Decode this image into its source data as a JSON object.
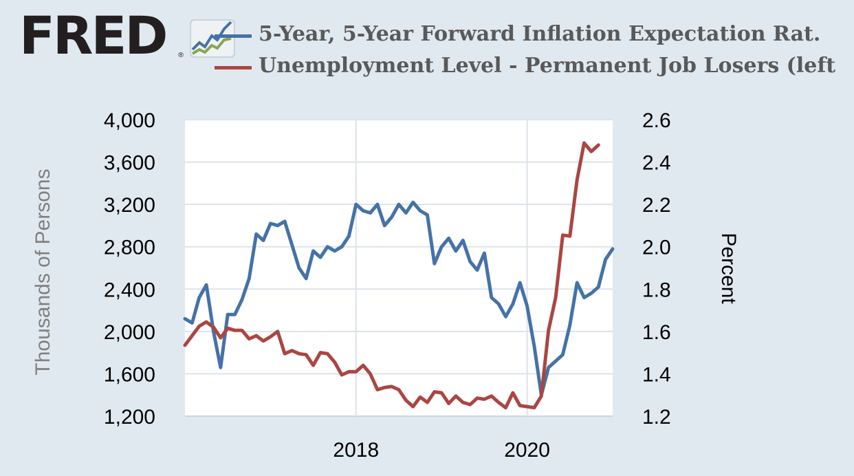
{
  "brand": {
    "logo_text": "FRED",
    "registered_mark": "®"
  },
  "colors": {
    "background": "#e1e9f0",
    "plot_background": "#ffffff",
    "gridline": "#dde3ea",
    "inflation_series": "#4572a7",
    "unemployment_series": "#aa4643",
    "left_axis_label": "#808080"
  },
  "legend": [
    {
      "label": "5-Year, 5-Year Forward Inflation Expectation Rat.",
      "color": "#4572a7"
    },
    {
      "label": "Unemployment Level - Permanent Job Losers (left",
      "color": "#aa4643"
    }
  ],
  "chart_data": {
    "type": "line",
    "x_ticks": [
      "2018",
      "2020"
    ],
    "x_range": [
      "2016-01",
      "2021-01"
    ],
    "left_axis": {
      "label": "Thousands of Persons",
      "range": [
        1200,
        4000
      ],
      "ticks": [
        "1,200",
        "1,600",
        "2,000",
        "2,400",
        "2,800",
        "3,200",
        "3,600",
        "4,000"
      ],
      "tick_values": [
        1200,
        1600,
        2000,
        2400,
        2800,
        3200,
        3600,
        4000
      ]
    },
    "right_axis": {
      "label": "Percent",
      "range": [
        1.2,
        2.6
      ],
      "ticks": [
        "1.2",
        "1.4",
        "1.6",
        "1.8",
        "2.0",
        "2.2",
        "2.4",
        "2.6"
      ],
      "tick_values": [
        1.2,
        1.4,
        1.6,
        1.8,
        2.0,
        2.2,
        2.4,
        2.6
      ]
    },
    "grid": true,
    "legend_position": "top",
    "series": [
      {
        "name": "5-Year, 5-Year Forward Inflation Expectation Rat.",
        "axis": "right",
        "color": "#4572a7",
        "x": [
          "2016-01",
          "2016-02",
          "2016-03",
          "2016-04",
          "2016-05",
          "2016-06",
          "2016-07",
          "2016-08",
          "2016-09",
          "2016-10",
          "2016-11",
          "2016-12",
          "2017-01",
          "2017-02",
          "2017-03",
          "2017-04",
          "2017-05",
          "2017-06",
          "2017-07",
          "2017-08",
          "2017-09",
          "2017-10",
          "2017-11",
          "2017-12",
          "2018-01",
          "2018-02",
          "2018-03",
          "2018-04",
          "2018-05",
          "2018-06",
          "2018-07",
          "2018-08",
          "2018-09",
          "2018-10",
          "2018-11",
          "2018-12",
          "2019-01",
          "2019-02",
          "2019-03",
          "2019-04",
          "2019-05",
          "2019-06",
          "2019-07",
          "2019-08",
          "2019-09",
          "2019-10",
          "2019-11",
          "2019-12",
          "2020-01",
          "2020-02",
          "2020-03",
          "2020-04",
          "2020-05",
          "2020-06",
          "2020-07",
          "2020-08",
          "2020-09",
          "2020-10",
          "2020-11",
          "2020-12",
          "2021-01"
        ],
        "values": [
          1.66,
          1.64,
          1.76,
          1.82,
          1.6,
          1.43,
          1.68,
          1.68,
          1.75,
          1.85,
          2.06,
          2.03,
          2.11,
          2.1,
          2.12,
          2.01,
          1.9,
          1.85,
          1.98,
          1.95,
          2.0,
          1.98,
          2.0,
          2.05,
          2.2,
          2.17,
          2.16,
          2.2,
          2.1,
          2.14,
          2.2,
          2.16,
          2.21,
          2.17,
          2.15,
          1.92,
          2.0,
          2.04,
          1.98,
          2.03,
          1.93,
          1.89,
          1.97,
          1.76,
          1.73,
          1.67,
          1.73,
          1.83,
          1.72,
          1.53,
          1.3,
          1.43,
          1.46,
          1.49,
          1.63,
          1.83,
          1.76,
          1.78,
          1.81,
          1.94,
          1.99
        ]
      },
      {
        "name": "Unemployment Level - Permanent Job Losers (left",
        "axis": "left",
        "color": "#aa4643",
        "x": [
          "2016-01",
          "2016-02",
          "2016-03",
          "2016-04",
          "2016-05",
          "2016-06",
          "2016-07",
          "2016-08",
          "2016-09",
          "2016-10",
          "2016-11",
          "2016-12",
          "2017-01",
          "2017-02",
          "2017-03",
          "2017-04",
          "2017-05",
          "2017-06",
          "2017-07",
          "2017-08",
          "2017-09",
          "2017-10",
          "2017-11",
          "2017-12",
          "2018-01",
          "2018-02",
          "2018-03",
          "2018-04",
          "2018-05",
          "2018-06",
          "2018-07",
          "2018-08",
          "2018-09",
          "2018-10",
          "2018-11",
          "2018-12",
          "2019-01",
          "2019-02",
          "2019-03",
          "2019-04",
          "2019-05",
          "2019-06",
          "2019-07",
          "2019-08",
          "2019-09",
          "2019-10",
          "2019-11",
          "2019-12",
          "2020-01",
          "2020-02",
          "2020-03",
          "2020-04",
          "2020-05",
          "2020-06",
          "2020-07",
          "2020-08",
          "2020-09",
          "2020-10",
          "2020-11",
          "2020-12"
        ],
        "values": [
          1870,
          1960,
          2050,
          2090,
          2040,
          1940,
          2030,
          2010,
          2010,
          1930,
          1960,
          1910,
          1950,
          2000,
          1790,
          1820,
          1790,
          1780,
          1680,
          1800,
          1790,
          1710,
          1590,
          1620,
          1620,
          1680,
          1600,
          1450,
          1470,
          1480,
          1450,
          1350,
          1290,
          1380,
          1330,
          1430,
          1420,
          1320,
          1390,
          1330,
          1310,
          1370,
          1360,
          1390,
          1330,
          1280,
          1420,
          1300,
          1290,
          1280,
          1390,
          2010,
          2320,
          2910,
          2900,
          3430,
          3780,
          3700,
          3760,
          null
        ]
      }
    ]
  }
}
